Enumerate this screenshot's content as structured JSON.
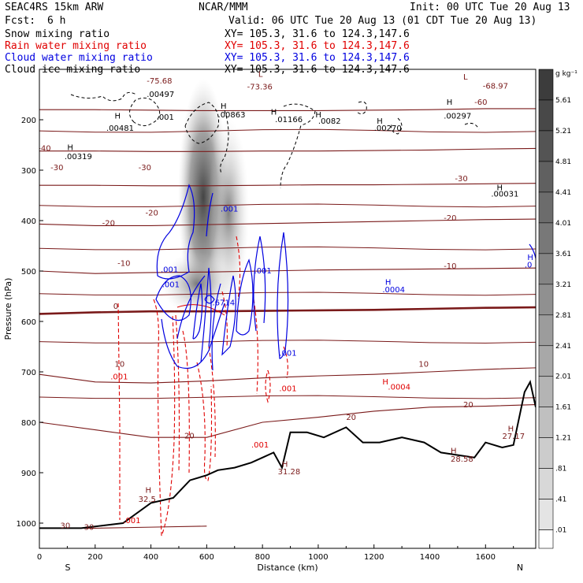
{
  "header": {
    "model": "SEAC4RS 15km ARW",
    "org": "NCAR/MMM",
    "init": "Init: 00 UTC Tue 20 Aug 13",
    "fcst_label": "Fcst:",
    "fcst_value": "6 h",
    "valid": "Valid: 06 UTC Tue 20 Aug 13 (01 CDT Tue 20 Aug 13)"
  },
  "fields": [
    {
      "name": "Snow mixing ratio",
      "xy": "XY= 105.3, 31.6 to 124.3,147.6",
      "color": "#000000"
    },
    {
      "name": "Rain water mixing ratio",
      "xy": "XY= 105.3, 31.6 to 124.3,147.6",
      "color": "#e00000"
    },
    {
      "name": "Cloud water mixing ratio",
      "xy": "XY= 105.3, 31.6 to 124.3,147.6",
      "color": "#0000e0"
    },
    {
      "name": "Cloud ice mixing ratio",
      "xy": "XY= 105.3, 31.6 to 124.3,147.6",
      "color": "#000000"
    }
  ],
  "chart_data": {
    "type": "cross-section",
    "xlabel": "Distance (km)",
    "ylabel": "Pressure (hPa)",
    "xlim": [
      0,
      1780
    ],
    "ylim": [
      1050,
      100
    ],
    "x_ticks": [
      0,
      200,
      400,
      600,
      800,
      1000,
      1200,
      1400,
      1600
    ],
    "y_ticks": [
      200,
      300,
      400,
      500,
      600,
      700,
      800,
      900,
      1000
    ],
    "x_end_labels": {
      "left": "S",
      "right": "N"
    },
    "colorbar": {
      "unit": "g kg⁻¹",
      "labels": [
        "5.61",
        "5.21",
        "4.81",
        "4.41",
        "4.01",
        "3.61",
        "3.21",
        "2.81",
        "2.41",
        "2.01",
        "1.61",
        "1.21",
        ".81",
        ".41",
        ".01"
      ]
    },
    "colors": {
      "temperature": "#7a1a1a",
      "rain": "#e00000",
      "cloud_water": "#0000e0",
      "terrain": "#000000"
    },
    "temperature_isotherms": [
      {
        "t": 30,
        "y": [
          1010,
          1010,
          1008,
          1006
        ]
      },
      {
        "t": 20,
        "y": [
          800,
          815,
          830,
          830,
          800,
          790,
          778,
          770,
          768,
          765
        ]
      },
      {
        "t": 10,
        "y": [
          705,
          720,
          722,
          718,
          712,
          708,
          705,
          700,
          695,
          692
        ]
      },
      {
        "t": 0,
        "y": [
          585,
          582,
          580,
          580,
          579,
          578,
          577,
          575,
          573,
          572
        ]
      },
      {
        "t": -10,
        "y": [
          500,
          505,
          503,
          502,
          500,
          498,
          497,
          496,
          495,
          494
        ]
      },
      {
        "t": -20,
        "y": [
          407,
          410,
          410,
          408,
          406,
          404,
          402,
          400,
          398,
          397
        ]
      },
      {
        "t": -30,
        "y": [
          330,
          330,
          331,
          331,
          330,
          329,
          329,
          328,
          327,
          326
        ]
      },
      {
        "t": -40,
        "y": [
          262,
          262,
          263,
          263,
          262,
          262,
          261,
          260,
          258,
          257
        ]
      },
      {
        "t": -60,
        "y": [
          180,
          180,
          181,
          182,
          182,
          182,
          181,
          180,
          178,
          178
        ]
      }
    ],
    "isotherm_x": [
      0,
      200,
      400,
      600,
      800,
      1000,
      1200,
      1400,
      1600,
      1780
    ],
    "terrain": {
      "x": [
        0,
        150,
        300,
        400,
        480,
        540,
        600,
        640,
        700,
        760,
        800,
        840,
        870,
        900,
        960,
        1020,
        1100,
        1160,
        1220,
        1300,
        1380,
        1440,
        1500,
        1560,
        1600,
        1660,
        1700,
        1740,
        1760,
        1780
      ],
      "p": [
        1010,
        1010,
        1000,
        960,
        950,
        915,
        905,
        895,
        890,
        880,
        870,
        860,
        890,
        820,
        820,
        830,
        810,
        840,
        840,
        830,
        840,
        860,
        865,
        870,
        840,
        850,
        845,
        740,
        720,
        770
      ]
    },
    "labels": [
      {
        "text": "-75.68",
        "x": 385,
        "y": 128,
        "c": "t"
      },
      {
        "text": "-73.36",
        "x": 745,
        "y": 140,
        "c": "t"
      },
      {
        "text": "-68.97",
        "x": 1590,
        "y": 138,
        "c": "t"
      },
      {
        "text": "-60",
        "x": 1560,
        "y": 170,
        "c": "t"
      },
      {
        "text": "-40",
        "x": -5,
        "y": 262,
        "c": "t"
      },
      {
        "text": "-30",
        "x": 40,
        "y": 300,
        "c": "t"
      },
      {
        "text": "-30",
        "x": 355,
        "y": 300,
        "c": "t"
      },
      {
        "text": "-30",
        "x": 1490,
        "y": 322,
        "c": "t"
      },
      {
        "text": "-20",
        "x": 225,
        "y": 410,
        "c": "t"
      },
      {
        "text": "-20",
        "x": 380,
        "y": 390,
        "c": "t"
      },
      {
        "text": "-20",
        "x": 1450,
        "y": 400,
        "c": "t"
      },
      {
        "text": "-10",
        "x": 280,
        "y": 490,
        "c": "t"
      },
      {
        "text": "-10",
        "x": 1450,
        "y": 495,
        "c": "t"
      },
      {
        "text": "0",
        "x": 265,
        "y": 575,
        "c": "t"
      },
      {
        "text": "10",
        "x": 270,
        "y": 690,
        "c": "t"
      },
      {
        "text": "10",
        "x": 1360,
        "y": 690,
        "c": "t"
      },
      {
        "text": "20",
        "x": 520,
        "y": 832,
        "c": "t"
      },
      {
        "text": "20",
        "x": 1100,
        "y": 795,
        "c": "t"
      },
      {
        "text": "20",
        "x": 1520,
        "y": 770,
        "c": "t"
      },
      {
        "text": "30",
        "x": 75,
        "y": 1010,
        "c": "t"
      },
      {
        "text": "30",
        "x": 160,
        "y": 1013,
        "c": "t"
      },
      {
        "text": "32.5",
        "x": 355,
        "y": 958,
        "c": "t"
      },
      {
        "text": "31.28",
        "x": 855,
        "y": 903,
        "c": "t"
      },
      {
        "text": "28.58",
        "x": 1475,
        "y": 878,
        "c": "t"
      },
      {
        "text": "27.17",
        "x": 1660,
        "y": 833,
        "c": "t"
      },
      {
        "text": ".00497",
        "x": 385,
        "y": 155,
        "c": "k"
      },
      {
        "text": ".001",
        "x": 420,
        "y": 200,
        "c": "k"
      },
      {
        "text": ".00863",
        "x": 640,
        "y": 195,
        "c": "k"
      },
      {
        "text": ".01166",
        "x": 845,
        "y": 205,
        "c": "k"
      },
      {
        "text": ".0082",
        "x": 1000,
        "y": 208,
        "c": "k"
      },
      {
        "text": ".00270",
        "x": 1200,
        "y": 222,
        "c": "k"
      },
      {
        "text": ".00297",
        "x": 1450,
        "y": 198,
        "c": "k"
      },
      {
        "text": ".00481",
        "x": 240,
        "y": 222,
        "c": "k"
      },
      {
        "text": ".00319",
        "x": 90,
        "y": 278,
        "c": "k"
      },
      {
        "text": ".00031",
        "x": 1620,
        "y": 352,
        "c": "k"
      },
      {
        "text": ".001",
        "x": 650,
        "y": 382,
        "c": "b"
      },
      {
        "text": ".001",
        "x": 435,
        "y": 502,
        "c": "b"
      },
      {
        "text": ".001",
        "x": 440,
        "y": 532,
        "c": "b"
      },
      {
        "text": ".001",
        "x": 770,
        "y": 505,
        "c": "b"
      },
      {
        "text": ".6714",
        "x": 620,
        "y": 568,
        "c": "b"
      },
      {
        "text": ".001",
        "x": 860,
        "y": 668,
        "c": "b"
      },
      {
        "text": ".0004",
        "x": 1230,
        "y": 542,
        "c": "b"
      },
      {
        "text": ".0",
        "x": 1740,
        "y": 493,
        "c": "b"
      },
      {
        "text": ".001",
        "x": 255,
        "y": 715,
        "c": "r"
      },
      {
        "text": ".001",
        "x": 860,
        "y": 738,
        "c": "r"
      },
      {
        "text": ".0004",
        "x": 1250,
        "y": 735,
        "c": "r"
      },
      {
        "text": ".001",
        "x": 760,
        "y": 850,
        "c": "r"
      },
      {
        "text": ".001",
        "x": 300,
        "y": 1000,
        "c": "r"
      },
      {
        "text": "H",
        "x": 1230,
        "y": 725,
        "c": "r"
      }
    ],
    "h_markers": [
      {
        "x": 270,
        "y": 198,
        "c": "k"
      },
      {
        "text": "L",
        "x": 785,
        "y": 115,
        "c": "t"
      },
      {
        "x": 650,
        "y": 178,
        "c": "k"
      },
      {
        "x": 830,
        "y": 190,
        "c": "k"
      },
      {
        "x": 990,
        "y": 195,
        "c": "k"
      },
      {
        "x": 1210,
        "y": 208,
        "c": "k"
      },
      {
        "x": 1460,
        "y": 170,
        "c": "k"
      },
      {
        "x": 100,
        "y": 260,
        "c": "k"
      },
      {
        "x": 1640,
        "y": 340,
        "c": "k"
      },
      {
        "x": 1240,
        "y": 527,
        "c": "b"
      },
      {
        "x": 1750,
        "y": 478,
        "c": "b"
      },
      {
        "text": "L",
        "x": 1520,
        "y": 120,
        "c": "t"
      },
      {
        "x": 380,
        "y": 940,
        "c": "t"
      },
      {
        "x": 870,
        "y": 888,
        "c": "t"
      },
      {
        "x": 1475,
        "y": 862,
        "c": "t"
      },
      {
        "x": 1680,
        "y": 818,
        "c": "t"
      }
    ]
  }
}
